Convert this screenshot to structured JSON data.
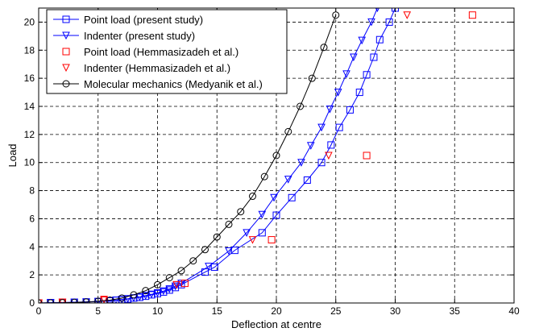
{
  "chart_data": {
    "type": "line",
    "xlabel": "Deflection at centre",
    "ylabel": "Load",
    "xlim": [
      0,
      40
    ],
    "ylim": [
      0,
      21
    ],
    "x_ticks": [
      0,
      5,
      10,
      15,
      20,
      25,
      30,
      35,
      40
    ],
    "y_ticks": [
      0,
      2,
      4,
      6,
      8,
      10,
      12,
      14,
      16,
      18,
      20
    ],
    "x_tick_labels": [
      "0",
      "5",
      "10",
      "15",
      "20",
      "25",
      "30",
      "35",
      "40"
    ],
    "y_tick_labels": [
      "0",
      "2",
      "4",
      "6",
      "8",
      "10",
      "12",
      "14",
      "16",
      "18",
      "20"
    ],
    "grid": true,
    "legend_position": "top-left",
    "series": [
      {
        "name": "Point load (present study)",
        "color": "#0000ff",
        "marker": "square",
        "line": true,
        "points": [
          [
            0,
            0
          ],
          [
            1,
            0.02
          ],
          [
            2,
            0.03
          ],
          [
            3,
            0.05
          ],
          [
            4,
            0.07
          ],
          [
            5,
            0.1
          ],
          [
            6,
            0.15
          ],
          [
            6.5,
            0.19
          ],
          [
            7,
            0.24
          ],
          [
            7.5,
            0.28
          ],
          [
            8,
            0.35
          ],
          [
            8.5,
            0.4
          ],
          [
            9,
            0.48
          ],
          [
            9.5,
            0.58
          ],
          [
            10,
            0.67
          ],
          [
            10.5,
            0.78
          ],
          [
            11,
            0.92
          ],
          [
            11.5,
            1.1
          ],
          [
            12,
            1.3
          ],
          [
            14,
            2.2
          ],
          [
            14.8,
            2.55
          ],
          [
            16.5,
            3.75
          ],
          [
            18.8,
            5.0
          ],
          [
            20,
            6.25
          ],
          [
            21.3,
            7.5
          ],
          [
            22.6,
            8.75
          ],
          [
            23.8,
            10.0
          ],
          [
            24.6,
            11.25
          ],
          [
            25.3,
            12.5
          ],
          [
            26.2,
            13.75
          ],
          [
            27,
            15.0
          ],
          [
            27.6,
            16.25
          ],
          [
            28.2,
            17.5
          ],
          [
            28.7,
            18.75
          ],
          [
            29.5,
            20.0
          ],
          [
            30,
            21.0
          ]
        ]
      },
      {
        "name": "Indenter (present study)",
        "color": "#0000ff",
        "marker": "triangle-down",
        "line": true,
        "points": [
          [
            0,
            0
          ],
          [
            1,
            0.02
          ],
          [
            2,
            0.03
          ],
          [
            3,
            0.05
          ],
          [
            4,
            0.07
          ],
          [
            5,
            0.1
          ],
          [
            6,
            0.15
          ],
          [
            6.5,
            0.2
          ],
          [
            7,
            0.25
          ],
          [
            7.5,
            0.3
          ],
          [
            8,
            0.36
          ],
          [
            8.5,
            0.43
          ],
          [
            9,
            0.52
          ],
          [
            9.5,
            0.62
          ],
          [
            10,
            0.72
          ],
          [
            10.5,
            0.85
          ],
          [
            11,
            1.0
          ],
          [
            11.5,
            1.2
          ],
          [
            12,
            1.4
          ],
          [
            14.3,
            2.6
          ],
          [
            16,
            3.7
          ],
          [
            17.5,
            5.0
          ],
          [
            18.8,
            6.3
          ],
          [
            19.8,
            7.5
          ],
          [
            21,
            8.8
          ],
          [
            22.1,
            10.0
          ],
          [
            22.9,
            11.2
          ],
          [
            23.8,
            12.5
          ],
          [
            24.5,
            13.8
          ],
          [
            25.2,
            15.0
          ],
          [
            25.9,
            16.3
          ],
          [
            26.5,
            17.5
          ],
          [
            27.2,
            18.7
          ],
          [
            28,
            20.0
          ],
          [
            28.5,
            21.0
          ]
        ]
      },
      {
        "name": "Point load (Hemmasizadeh et al.)",
        "color": "#ff0000",
        "marker": "square",
        "line": false,
        "points": [
          [
            0,
            0
          ],
          [
            2,
            0.05
          ],
          [
            5.5,
            0.2
          ],
          [
            12.3,
            1.4
          ],
          [
            19.6,
            4.5
          ],
          [
            27.6,
            10.5
          ],
          [
            36.5,
            20.5
          ]
        ]
      },
      {
        "name": "Indenter (Hemmasizadeh et al.)",
        "color": "#ff0000",
        "marker": "triangle-down",
        "line": false,
        "points": [
          [
            0,
            0
          ],
          [
            2,
            0.05
          ],
          [
            5.5,
            0.25
          ],
          [
            11.6,
            1.3
          ],
          [
            18,
            4.5
          ],
          [
            24.4,
            10.5
          ],
          [
            31,
            20.5
          ]
        ]
      },
      {
        "name": "Molecular mechanics (Medyanik et al.)",
        "color": "#000000",
        "marker": "circle",
        "line": true,
        "points": [
          [
            0,
            0
          ],
          [
            1,
            0.01
          ],
          [
            2,
            0.02
          ],
          [
            3,
            0.04
          ],
          [
            4,
            0.07
          ],
          [
            5,
            0.12
          ],
          [
            6,
            0.2
          ],
          [
            7,
            0.35
          ],
          [
            8,
            0.58
          ],
          [
            9,
            0.88
          ],
          [
            10,
            1.3
          ],
          [
            11,
            1.8
          ],
          [
            12,
            2.3
          ],
          [
            13,
            3.0
          ],
          [
            14,
            3.8
          ],
          [
            15,
            4.7
          ],
          [
            16,
            5.6
          ],
          [
            17,
            6.5
          ],
          [
            18,
            7.6
          ],
          [
            19,
            9.0
          ],
          [
            20,
            10.5
          ],
          [
            21,
            12.2
          ],
          [
            22,
            14.0
          ],
          [
            23,
            16.0
          ],
          [
            24,
            18.2
          ],
          [
            25,
            20.5
          ]
        ]
      }
    ]
  }
}
